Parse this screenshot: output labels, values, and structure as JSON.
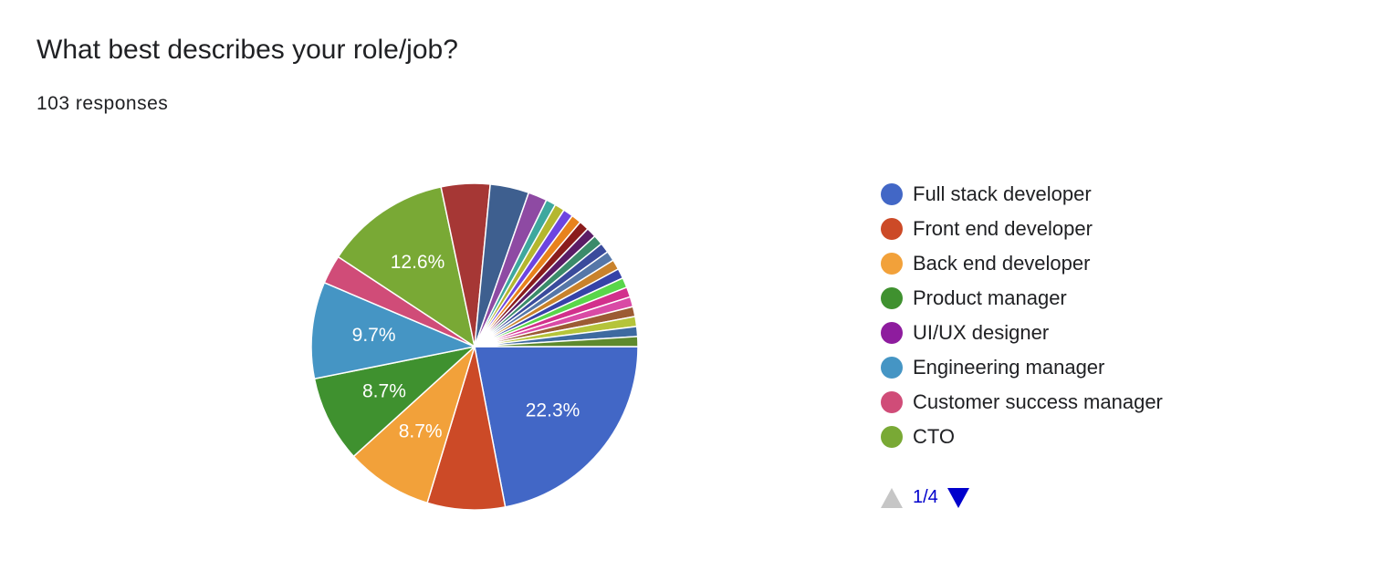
{
  "question": {
    "title": "What best describes your role/job?",
    "responses": "103 responses"
  },
  "chart_data": {
    "type": "pie",
    "title": "What best describes your role/job?",
    "total_responses": 103,
    "slices": [
      {
        "label": "Full stack developer",
        "value": 22.3,
        "color": "#4267c6",
        "show_label": "22.3%"
      },
      {
        "label": "Front end developer",
        "value": 7.8,
        "color": "#cc4a27",
        "show_label": ""
      },
      {
        "label": "Back end developer",
        "value": 8.7,
        "color": "#f2a13a",
        "show_label": "8.7%"
      },
      {
        "label": "Product manager",
        "value": 8.7,
        "color": "#3f912f",
        "show_label": "8.7%"
      },
      {
        "label": "Engineering manager",
        "value": 9.7,
        "color": "#4595c4",
        "show_label": "9.7%"
      },
      {
        "label": "Customer success manager",
        "value": 2.9,
        "color": "#d04c78",
        "show_label": ""
      },
      {
        "label": "CTO",
        "value": 12.6,
        "color": "#79a935",
        "show_label": "12.6%"
      },
      {
        "label": "",
        "value": 4.9,
        "color": "#a63735",
        "show_label": ""
      },
      {
        "label": "",
        "value": 3.9,
        "color": "#3e5f8f",
        "show_label": ""
      },
      {
        "label": "",
        "value": 1.9,
        "color": "#8e4aa3",
        "show_label": ""
      },
      {
        "label": "",
        "value": 1.0,
        "color": "#3ea89e",
        "show_label": ""
      },
      {
        "label": "",
        "value": 1.0,
        "color": "#b4b72f",
        "show_label": ""
      },
      {
        "label": "",
        "value": 1.0,
        "color": "#6d45e0",
        "show_label": ""
      },
      {
        "label": "",
        "value": 1.0,
        "color": "#e8821c",
        "show_label": ""
      },
      {
        "label": "",
        "value": 1.0,
        "color": "#8a1c1c",
        "show_label": ""
      },
      {
        "label": "",
        "value": 1.0,
        "color": "#5b1c66",
        "show_label": ""
      },
      {
        "label": "",
        "value": 1.0,
        "color": "#3b8b6a",
        "show_label": ""
      },
      {
        "label": "",
        "value": 1.0,
        "color": "#3a4b9c",
        "show_label": ""
      },
      {
        "label": "",
        "value": 1.0,
        "color": "#5677a8",
        "show_label": ""
      },
      {
        "label": "",
        "value": 1.0,
        "color": "#c9822b",
        "show_label": ""
      },
      {
        "label": "",
        "value": 1.0,
        "color": "#3642a8",
        "show_label": ""
      },
      {
        "label": "",
        "value": 1.0,
        "color": "#59d64a",
        "show_label": ""
      },
      {
        "label": "",
        "value": 1.0,
        "color": "#d2308c",
        "show_label": ""
      },
      {
        "label": "",
        "value": 1.0,
        "color": "#d94aa5",
        "show_label": ""
      },
      {
        "label": "",
        "value": 1.0,
        "color": "#9c5b34",
        "show_label": ""
      },
      {
        "label": "",
        "value": 1.0,
        "color": "#b5c43a",
        "show_label": ""
      },
      {
        "label": "",
        "value": 1.0,
        "color": "#3e6aa0",
        "show_label": ""
      },
      {
        "label": "",
        "value": 1.0,
        "color": "#5e8a2e",
        "show_label": ""
      }
    ]
  },
  "legend": {
    "items": [
      {
        "label": "Full stack developer",
        "color": "#4267c6"
      },
      {
        "label": "Front end developer",
        "color": "#cc4a27"
      },
      {
        "label": "Back end developer",
        "color": "#f2a13a"
      },
      {
        "label": "Product manager",
        "color": "#3f912f"
      },
      {
        "label": "UI/UX designer",
        "color": "#8e1c9e"
      },
      {
        "label": "Engineering manager",
        "color": "#4595c4"
      },
      {
        "label": "Customer success manager",
        "color": "#d04c78"
      },
      {
        "label": "CTO",
        "color": "#79a935"
      }
    ],
    "page": "1/4"
  }
}
